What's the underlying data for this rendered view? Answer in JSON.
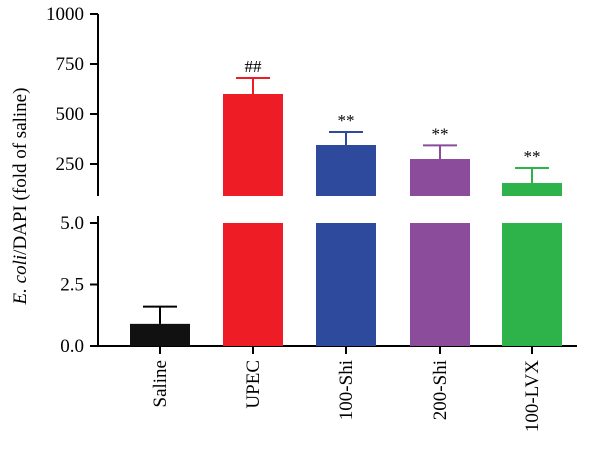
{
  "chart_data": {
    "type": "bar",
    "ylabel_italic": "E. coli",
    "ylabel_rest": "/DAPI (fold of saline)",
    "categories": [
      "Saline",
      "UPEC",
      "100-Shi",
      "200-Shi",
      "100-LVX"
    ],
    "values": [
      0.9,
      600,
      345,
      275,
      155
    ],
    "errors": [
      0.7,
      80,
      65,
      68,
      75
    ],
    "annotations": [
      "",
      "##",
      "**",
      "**",
      "**"
    ],
    "colors": [
      "#111111",
      "#ee1c25",
      "#2e4a9c",
      "#8b4c9c",
      "#2db34a"
    ],
    "y_axis_lower": {
      "range": [
        0,
        5
      ],
      "ticks": [
        0.0,
        2.5,
        5.0
      ],
      "tick_labels": [
        "0.0",
        "2.5",
        "5.0"
      ]
    },
    "y_axis_upper": {
      "range": [
        100,
        1000
      ],
      "ticks": [
        250,
        500,
        750,
        1000
      ],
      "tick_labels": [
        "250",
        "500",
        "750",
        "1000"
      ]
    },
    "broken_axis": true,
    "grid": false,
    "legend": "none"
  }
}
